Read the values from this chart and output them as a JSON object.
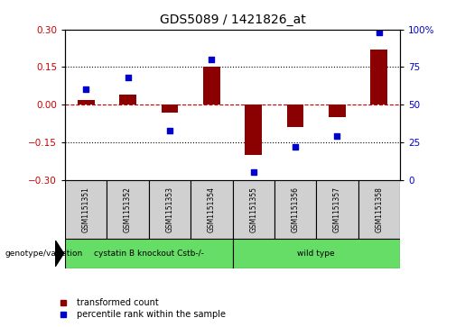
{
  "title": "GDS5089 / 1421826_at",
  "samples": [
    "GSM1151351",
    "GSM1151352",
    "GSM1151353",
    "GSM1151354",
    "GSM1151355",
    "GSM1151356",
    "GSM1151357",
    "GSM1151358"
  ],
  "red_bars": [
    0.02,
    0.04,
    -0.03,
    0.15,
    -0.2,
    -0.09,
    -0.05,
    0.22
  ],
  "blue_dots": [
    60,
    68,
    33,
    80,
    5,
    22,
    29,
    98
  ],
  "ylim": [
    -0.3,
    0.3
  ],
  "yticks": [
    -0.3,
    -0.15,
    0.0,
    0.15,
    0.3
  ],
  "right_yticks": [
    0,
    25,
    50,
    75,
    100
  ],
  "dotted_lines": [
    -0.15,
    0.15
  ],
  "bar_color": "#8B0000",
  "dot_color": "#0000CC",
  "group1_label": "cystatin B knockout Cstb-/-",
  "group2_label": "wild type",
  "group1_count": 4,
  "group2_count": 4,
  "group_color": "#66DD66",
  "genotype_label": "genotype/variation",
  "legend1": "transformed count",
  "legend2": "percentile rank within the sample",
  "sample_box_color": "#d0d0d0",
  "tick_label_color_left": "#CC0000",
  "tick_label_color_right": "#0000CC",
  "title_fontsize": 10
}
